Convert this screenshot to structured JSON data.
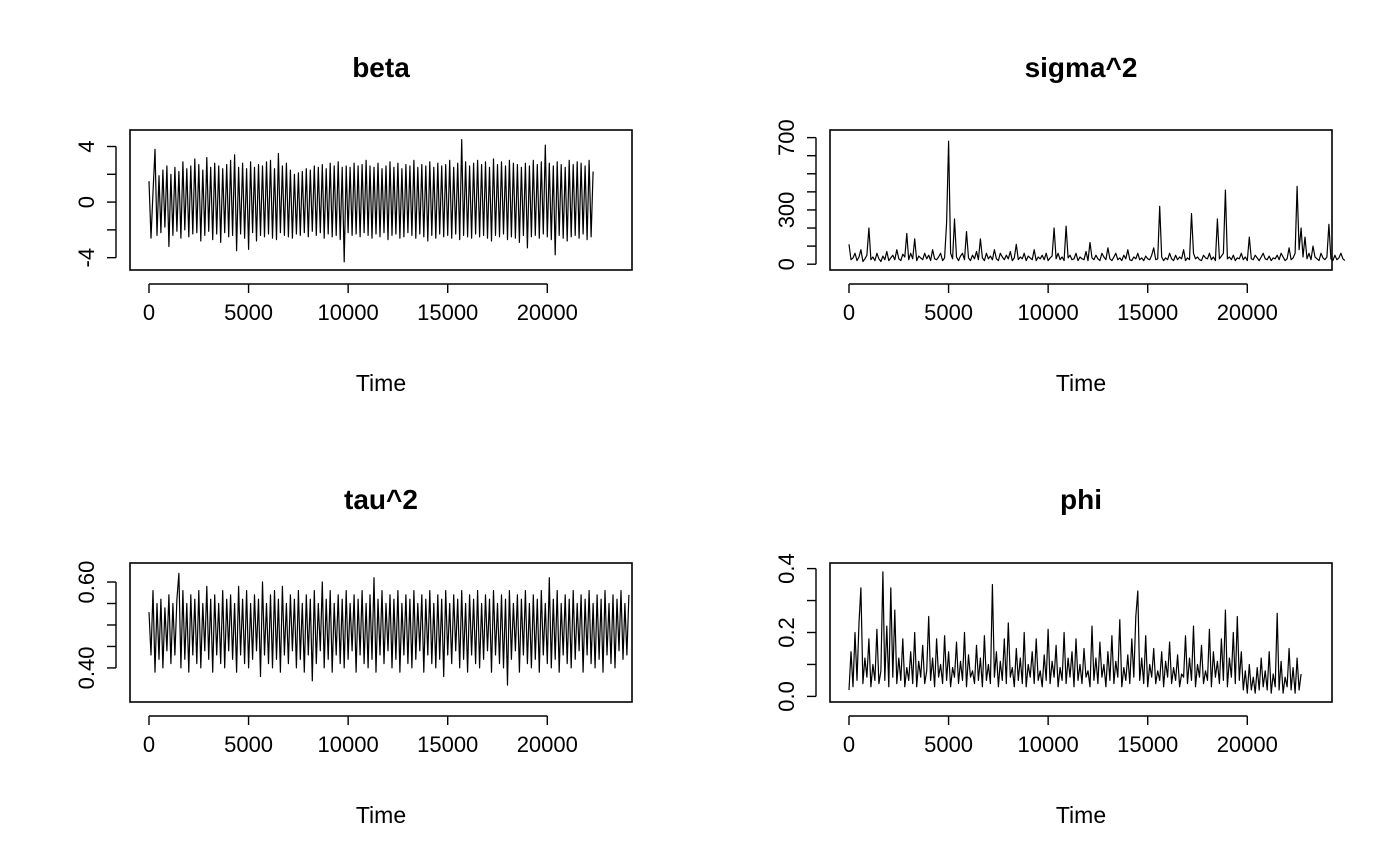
{
  "figure": {
    "background": "#ffffff",
    "line_color": "#000000"
  },
  "chart_data": [
    {
      "type": "line",
      "title": "beta",
      "xlabel": "Time",
      "ylabel": "",
      "xlim": [
        0,
        23300
      ],
      "ylim": [
        -4.6,
        4.9
      ],
      "x_ticks": [
        0,
        5000,
        10000,
        15000,
        20000
      ],
      "y_ticks": [
        -4,
        -2,
        0,
        2,
        4
      ],
      "y_tick_labels": [
        "-4",
        "",
        "0",
        "",
        "4"
      ],
      "series": [
        {
          "x_start": 0,
          "x_step": 100,
          "values": [
            1.5,
            -2.6,
            0.7,
            3.8,
            -2.4,
            1.9,
            -2.2,
            2.3,
            -1.8,
            2.6,
            -3.2,
            2.0,
            -2.4,
            2.5,
            -2.1,
            2.2,
            -2.6,
            2.9,
            -2.0,
            2.4,
            -2.5,
            2.6,
            -2.3,
            3.1,
            -2.2,
            2.7,
            -2.8,
            2.3,
            -2.4,
            3.2,
            -2.1,
            2.5,
            -2.7,
            2.8,
            -2.3,
            2.6,
            -2.9,
            2.4,
            -2.2,
            2.7,
            -2.5,
            3.0,
            -2.4,
            3.4,
            -3.5,
            2.5,
            -2.3,
            2.8,
            -2.6,
            2.4,
            -3.4,
            2.9,
            -2.2,
            2.5,
            -2.8,
            2.7,
            -2.4,
            2.6,
            -2.5,
            2.9,
            -2.3,
            3.0,
            -2.6,
            2.4,
            -2.7,
            3.5,
            -2.2,
            2.6,
            -2.4,
            2.8,
            -2.5,
            2.3,
            -2.6,
            2.0,
            -2.3,
            2.1,
            -2.4,
            2.2,
            -2.2,
            2.4,
            -2.5,
            2.3,
            -2.1,
            2.6,
            -2.4,
            2.5,
            -2.2,
            2.7,
            -2.6,
            2.4,
            -2.3,
            2.8,
            -2.5,
            2.6,
            -2.4,
            2.9,
            -2.7,
            2.5,
            -4.3,
            2.6,
            -2.2,
            2.5,
            -2.4,
            2.8,
            -2.3,
            2.6,
            -2.5,
            2.7,
            -2.2,
            3.0,
            -2.4,
            2.6,
            -2.6,
            2.5,
            -2.3,
            2.8,
            -2.5,
            2.4,
            -2.2,
            2.6,
            -2.7,
            2.9,
            -2.4,
            2.5,
            -2.3,
            2.8,
            -2.6,
            2.4,
            -2.5,
            2.7,
            -2.2,
            2.6,
            -2.4,
            3.0,
            -2.6,
            2.5,
            -2.3,
            2.7,
            -2.5,
            2.6,
            -2.8,
            2.9,
            -2.4,
            2.5,
            -2.6,
            2.8,
            -2.3,
            2.6,
            -2.5,
            2.7,
            -2.4,
            3.0,
            -2.6,
            2.5,
            -2.3,
            2.8,
            -2.7,
            4.5,
            -2.4,
            2.9,
            -2.5,
            2.6,
            -2.6,
            2.8,
            -2.3,
            3.0,
            -2.5,
            2.7,
            -2.4,
            2.9,
            -2.6,
            2.5,
            -2.8,
            3.1,
            -2.4,
            2.7,
            -2.5,
            2.9,
            -2.3,
            2.6,
            -2.7,
            3.0,
            -2.5,
            2.8,
            -2.6,
            2.7,
            -2.9,
            2.5,
            -2.4,
            2.8,
            -3.3,
            2.6,
            -2.5,
            3.0,
            -2.4,
            2.7,
            -2.6,
            2.9,
            -2.3,
            4.1,
            -2.5,
            2.8,
            -2.7,
            2.6,
            -3.8,
            2.9,
            -2.4,
            2.7,
            -2.6,
            2.5,
            -2.8,
            3.0,
            -2.5,
            2.7,
            -2.4,
            2.9,
            -2.6,
            2.8,
            -2.3,
            2.6,
            -2.7,
            3.0,
            -2.5,
            2.2
          ]
        }
      ]
    },
    {
      "type": "line",
      "title": "sigma^2",
      "xlabel": "Time",
      "ylabel": "",
      "xlim": [
        0,
        23300
      ],
      "ylim": [
        -10,
        720
      ],
      "x_ticks": [
        0,
        5000,
        10000,
        15000,
        20000
      ],
      "y_ticks": [
        0,
        100,
        200,
        300,
        400,
        500,
        600,
        700
      ],
      "y_tick_labels": [
        "0",
        "",
        "",
        "300",
        "",
        "",
        "",
        "700"
      ],
      "series": [
        {
          "x_start": 0,
          "x_step": 100,
          "values": [
            110,
            25,
            35,
            60,
            20,
            40,
            80,
            15,
            30,
            50,
            200,
            25,
            40,
            20,
            60,
            30,
            15,
            45,
            25,
            70,
            20,
            35,
            50,
            25,
            80,
            30,
            20,
            55,
            40,
            170,
            25,
            60,
            30,
            140,
            20,
            45,
            35,
            25,
            60,
            30,
            50,
            20,
            80,
            30,
            25,
            40,
            60,
            20,
            35,
            230,
            680,
            60,
            30,
            250,
            40,
            20,
            45,
            60,
            25,
            180,
            35,
            20,
            50,
            30,
            70,
            25,
            140,
            35,
            20,
            60,
            30,
            45,
            25,
            80,
            30,
            20,
            60,
            40,
            25,
            50,
            30,
            70,
            20,
            35,
            110,
            25,
            40,
            30,
            60,
            20,
            45,
            35,
            25,
            80,
            20,
            40,
            30,
            50,
            25,
            60,
            20,
            35,
            45,
            200,
            30,
            60,
            25,
            40,
            20,
            210,
            35,
            50,
            25,
            30,
            60,
            20,
            40,
            30,
            25,
            70,
            20,
            120,
            35,
            25,
            50,
            30,
            20,
            60,
            40,
            25,
            90,
            30,
            20,
            40,
            60,
            25,
            35,
            20,
            50,
            30,
            80,
            25,
            20,
            40,
            30,
            60,
            25,
            35,
            20,
            45,
            30,
            25,
            50,
            90,
            25,
            30,
            320,
            40,
            20,
            35,
            25,
            60,
            30,
            20,
            50,
            25,
            40,
            30,
            80,
            20,
            35,
            25,
            280,
            60,
            30,
            40,
            25,
            20,
            50,
            35,
            30,
            60,
            25,
            40,
            20,
            250,
            30,
            45,
            60,
            410,
            30,
            40,
            25,
            50,
            20,
            35,
            30,
            60,
            25,
            40,
            20,
            150,
            30,
            25,
            50,
            35,
            20,
            40,
            60,
            30,
            25,
            45,
            20,
            35,
            30,
            50,
            25,
            60,
            40,
            20,
            30,
            90,
            25,
            35,
            60,
            430,
            80,
            200,
            40,
            150,
            30,
            60,
            25,
            100,
            40,
            30,
            20,
            60,
            35,
            25,
            40,
            220,
            30,
            20,
            50,
            25,
            35,
            60,
            30,
            20
          ]
        }
      ]
    },
    {
      "type": "line",
      "title": "tau^2",
      "xlabel": "Time",
      "ylabel": "",
      "xlim": [
        0,
        23300
      ],
      "ylim": [
        0.33,
        0.635
      ],
      "x_ticks": [
        0,
        5000,
        10000,
        15000,
        20000
      ],
      "y_ticks": [
        0.4,
        0.45,
        0.5,
        0.55,
        0.6
      ],
      "y_tick_labels": [
        "0.40",
        "",
        "",
        "",
        "0.60"
      ],
      "series": [
        {
          "x_start": 0,
          "x_step": 100,
          "values": [
            0.53,
            0.43,
            0.58,
            0.39,
            0.55,
            0.42,
            0.56,
            0.4,
            0.54,
            0.44,
            0.57,
            0.41,
            0.55,
            0.43,
            0.56,
            0.62,
            0.4,
            0.58,
            0.42,
            0.55,
            0.39,
            0.57,
            0.43,
            0.56,
            0.41,
            0.58,
            0.4,
            0.55,
            0.44,
            0.59,
            0.42,
            0.56,
            0.39,
            0.57,
            0.43,
            0.55,
            0.41,
            0.58,
            0.4,
            0.56,
            0.44,
            0.57,
            0.42,
            0.55,
            0.39,
            0.59,
            0.43,
            0.56,
            0.41,
            0.58,
            0.4,
            0.55,
            0.42,
            0.57,
            0.44,
            0.56,
            0.38,
            0.6,
            0.43,
            0.55,
            0.41,
            0.57,
            0.4,
            0.58,
            0.42,
            0.56,
            0.39,
            0.59,
            0.43,
            0.55,
            0.41,
            0.57,
            0.44,
            0.56,
            0.4,
            0.58,
            0.42,
            0.55,
            0.39,
            0.57,
            0.43,
            0.56,
            0.37,
            0.58,
            0.41,
            0.55,
            0.44,
            0.6,
            0.4,
            0.56,
            0.42,
            0.58,
            0.39,
            0.55,
            0.43,
            0.57,
            0.41,
            0.56,
            0.4,
            0.58,
            0.42,
            0.55,
            0.44,
            0.57,
            0.39,
            0.56,
            0.43,
            0.58,
            0.41,
            0.55,
            0.4,
            0.57,
            0.42,
            0.61,
            0.39,
            0.56,
            0.43,
            0.58,
            0.41,
            0.55,
            0.44,
            0.57,
            0.4,
            0.56,
            0.42,
            0.58,
            0.39,
            0.55,
            0.43,
            0.57,
            0.41,
            0.56,
            0.4,
            0.58,
            0.42,
            0.55,
            0.44,
            0.57,
            0.39,
            0.56,
            0.43,
            0.58,
            0.41,
            0.55,
            0.4,
            0.57,
            0.42,
            0.56,
            0.38,
            0.58,
            0.43,
            0.55,
            0.41,
            0.57,
            0.44,
            0.56,
            0.4,
            0.58,
            0.42,
            0.55,
            0.39,
            0.57,
            0.43,
            0.56,
            0.41,
            0.58,
            0.4,
            0.55,
            0.42,
            0.57,
            0.44,
            0.56,
            0.39,
            0.58,
            0.43,
            0.55,
            0.41,
            0.57,
            0.4,
            0.56,
            0.36,
            0.58,
            0.42,
            0.55,
            0.44,
            0.57,
            0.39,
            0.56,
            0.43,
            0.58,
            0.41,
            0.55,
            0.4,
            0.57,
            0.42,
            0.56,
            0.39,
            0.58,
            0.43,
            0.55,
            0.41,
            0.61,
            0.4,
            0.56,
            0.42,
            0.58,
            0.39,
            0.55,
            0.43,
            0.57,
            0.41,
            0.56,
            0.4,
            0.58,
            0.42,
            0.55,
            0.44,
            0.57,
            0.39,
            0.56,
            0.43,
            0.58,
            0.41,
            0.55,
            0.4,
            0.57,
            0.42,
            0.56,
            0.39,
            0.58,
            0.43,
            0.55,
            0.41,
            0.57,
            0.4,
            0.56,
            0.44,
            0.58,
            0.42,
            0.55,
            0.43,
            0.57
          ]
        }
      ]
    },
    {
      "type": "line",
      "title": "phi",
      "xlabel": "Time",
      "ylabel": "",
      "xlim": [
        0,
        23300
      ],
      "ylim": [
        -0.005,
        0.405
      ],
      "x_ticks": [
        0,
        5000,
        10000,
        15000,
        20000
      ],
      "y_ticks": [
        0.0,
        0.1,
        0.2,
        0.3,
        0.4
      ],
      "y_tick_labels": [
        "0.0",
        "",
        "0.2",
        "",
        "0.4"
      ],
      "series": [
        {
          "x_start": 0,
          "x_step": 100,
          "values": [
            0.02,
            0.14,
            0.03,
            0.2,
            0.05,
            0.23,
            0.34,
            0.04,
            0.12,
            0.06,
            0.18,
            0.03,
            0.1,
            0.05,
            0.21,
            0.04,
            0.08,
            0.39,
            0.05,
            0.22,
            0.03,
            0.34,
            0.06,
            0.27,
            0.04,
            0.12,
            0.05,
            0.18,
            0.03,
            0.09,
            0.05,
            0.14,
            0.04,
            0.2,
            0.03,
            0.11,
            0.06,
            0.16,
            0.04,
            0.08,
            0.25,
            0.05,
            0.12,
            0.03,
            0.18,
            0.06,
            0.1,
            0.04,
            0.19,
            0.05,
            0.14,
            0.03,
            0.09,
            0.06,
            0.17,
            0.04,
            0.11,
            0.05,
            0.2,
            0.03,
            0.13,
            0.06,
            0.08,
            0.04,
            0.16,
            0.05,
            0.12,
            0.03,
            0.19,
            0.05,
            0.1,
            0.04,
            0.35,
            0.06,
            0.14,
            0.03,
            0.11,
            0.05,
            0.18,
            0.04,
            0.23,
            0.06,
            0.09,
            0.03,
            0.15,
            0.05,
            0.12,
            0.04,
            0.2,
            0.03,
            0.1,
            0.06,
            0.14,
            0.04,
            0.18,
            0.05,
            0.08,
            0.03,
            0.13,
            0.05,
            0.21,
            0.04,
            0.11,
            0.06,
            0.16,
            0.03,
            0.09,
            0.05,
            0.2,
            0.04,
            0.12,
            0.06,
            0.14,
            0.03,
            0.18,
            0.05,
            0.1,
            0.04,
            0.15,
            0.06,
            0.08,
            0.03,
            0.22,
            0.05,
            0.12,
            0.04,
            0.17,
            0.06,
            0.1,
            0.03,
            0.14,
            0.05,
            0.19,
            0.04,
            0.11,
            0.06,
            0.24,
            0.03,
            0.09,
            0.05,
            0.13,
            0.04,
            0.18,
            0.06,
            0.25,
            0.33,
            0.05,
            0.12,
            0.04,
            0.19,
            0.03,
            0.1,
            0.06,
            0.15,
            0.04,
            0.08,
            0.05,
            0.14,
            0.03,
            0.11,
            0.06,
            0.17,
            0.04,
            0.09,
            0.05,
            0.13,
            0.03,
            0.07,
            0.06,
            0.19,
            0.04,
            0.12,
            0.05,
            0.22,
            0.03,
            0.1,
            0.06,
            0.16,
            0.04,
            0.08,
            0.05,
            0.21,
            0.03,
            0.14,
            0.06,
            0.11,
            0.04,
            0.18,
            0.05,
            0.27,
            0.03,
            0.12,
            0.06,
            0.2,
            0.04,
            0.25,
            0.05,
            0.14,
            0.02,
            0.08,
            0.01,
            0.1,
            0.02,
            0.06,
            0.01,
            0.09,
            0.02,
            0.12,
            0.03,
            0.08,
            0.02,
            0.14,
            0.01,
            0.07,
            0.03,
            0.26,
            0.02,
            0.11,
            0.01,
            0.06,
            0.03,
            0.15,
            0.02,
            0.09,
            0.01,
            0.12,
            0.02,
            0.07
          ]
        }
      ]
    }
  ]
}
